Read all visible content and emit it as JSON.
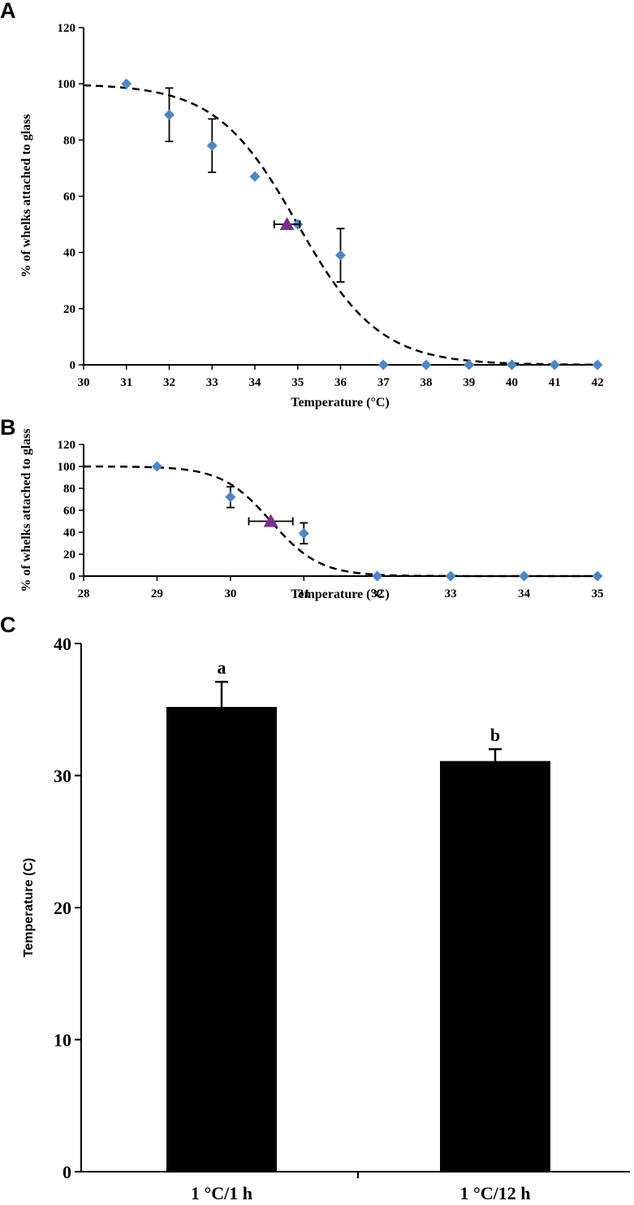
{
  "chart_data": [
    {
      "type": "scatter",
      "panel": "A",
      "xlabel": "Temperature (°C)",
      "ylabel": "% of whelks attached to glass",
      "xlim": [
        30,
        42
      ],
      "ylim": [
        0,
        120
      ],
      "xticks": [
        30,
        31,
        32,
        33,
        34,
        35,
        36,
        37,
        38,
        39,
        40,
        41,
        42
      ],
      "yticks": [
        0,
        20,
        40,
        60,
        80,
        100,
        120
      ],
      "points": [
        {
          "x": 31,
          "y": 100,
          "err": 0
        },
        {
          "x": 32,
          "y": 89,
          "err": 9.5
        },
        {
          "x": 33,
          "y": 78,
          "err": 9.5
        },
        {
          "x": 34,
          "y": 67,
          "err": 0
        },
        {
          "x": 35,
          "y": 50,
          "err": 0
        },
        {
          "x": 36,
          "y": 39,
          "err": 9.5
        },
        {
          "x": 37,
          "y": 0,
          "err": 0
        },
        {
          "x": 38,
          "y": 0,
          "err": 0
        },
        {
          "x": 39,
          "y": 0,
          "err": 0
        },
        {
          "x": 40,
          "y": 0,
          "err": 0
        },
        {
          "x": 41,
          "y": 0,
          "err": 0
        },
        {
          "x": 42,
          "y": 0,
          "err": 0
        }
      ],
      "marker50": {
        "x": 34.75,
        "y": 50,
        "xerr": 0.3
      },
      "fit": {
        "x50": 35.0,
        "slope": 1.05
      },
      "colors": {
        "points": "#4a86c8",
        "marker": "#7b2d8e",
        "fit": "#000000"
      }
    },
    {
      "type": "scatter",
      "panel": "B",
      "xlabel": "Temperature (°C)",
      "ylabel": "% of whelks attached to glass",
      "xlim": [
        28,
        35
      ],
      "ylim": [
        0,
        120
      ],
      "xticks": [
        28,
        29,
        30,
        31,
        32,
        33,
        34,
        35
      ],
      "yticks": [
        0,
        20,
        40,
        60,
        80,
        100,
        120
      ],
      "points": [
        {
          "x": 29,
          "y": 100,
          "err": 0
        },
        {
          "x": 30,
          "y": 72,
          "err": 9.5
        },
        {
          "x": 31,
          "y": 39,
          "err": 9.5
        },
        {
          "x": 32,
          "y": 0,
          "err": 0
        },
        {
          "x": 33,
          "y": 0,
          "err": 0
        },
        {
          "x": 34,
          "y": 0,
          "err": 0
        },
        {
          "x": 35,
          "y": 0,
          "err": 0
        }
      ],
      "marker50": {
        "x": 30.55,
        "y": 50,
        "xerr": 0.3
      },
      "fit": {
        "x50": 30.55,
        "slope": 3.0
      },
      "colors": {
        "points": "#4a86c8",
        "marker": "#7b2d8e",
        "fit": "#000000"
      }
    },
    {
      "type": "bar",
      "panel": "C",
      "categories": [
        "1 °C/1 h",
        "1 °C/12 h"
      ],
      "values": [
        35.2,
        31.1
      ],
      "errors": [
        1.9,
        0.9
      ],
      "significance": [
        "a",
        "b"
      ],
      "ylabel": "Temperature (C)",
      "xlabel": "",
      "ylim": [
        0,
        40
      ],
      "yticks": [
        0,
        10,
        20,
        30,
        40
      ],
      "colors": {
        "bars": "#000000"
      }
    }
  ]
}
